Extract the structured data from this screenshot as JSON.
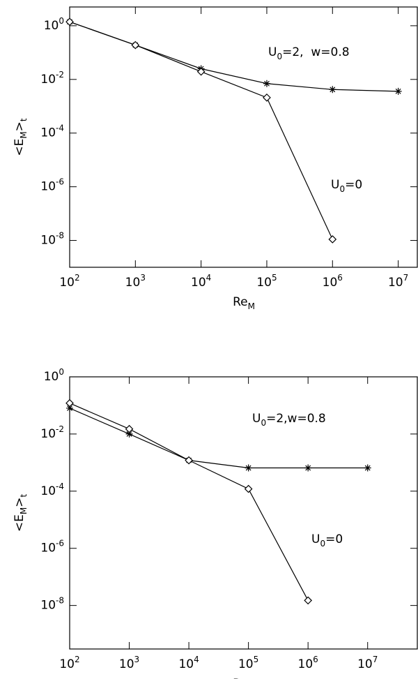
{
  "chart_data": [
    {
      "type": "line",
      "xscale": "log",
      "yscale": "log",
      "xlabel": [
        "Re",
        "M"
      ],
      "ylabel": [
        "<E",
        "M",
        ">",
        "t"
      ],
      "xlim": [
        100,
        20000000
      ],
      "ylim": [
        1e-09,
        5
      ],
      "xticks": [
        {
          "value": 100,
          "label": [
            "10",
            "2"
          ]
        },
        {
          "value": 1000,
          "label": [
            "10",
            "3"
          ]
        },
        {
          "value": 10000,
          "label": [
            "10",
            "4"
          ]
        },
        {
          "value": 100000,
          "label": [
            "10",
            "5"
          ]
        },
        {
          "value": 1000000,
          "label": [
            "10",
            "6"
          ]
        },
        {
          "value": 10000000,
          "label": [
            "10",
            "7"
          ]
        }
      ],
      "yticks": [
        {
          "value": 1e-08,
          "label": [
            "10",
            "-8"
          ]
        },
        {
          "value": 1e-06,
          "label": [
            "10",
            "-6"
          ]
        },
        {
          "value": 0.0001,
          "label": [
            "10",
            "-4"
          ]
        },
        {
          "value": 0.01,
          "label": [
            "10",
            "-2"
          ]
        },
        {
          "value": 1,
          "label": [
            "10",
            "0"
          ]
        }
      ],
      "annotations": [
        [
          "U",
          "0",
          "=2,  w=0.8"
        ],
        [
          "U",
          "0",
          "=0"
        ]
      ],
      "series": [
        {
          "marker": "asterisk",
          "color": "#000000",
          "x": [
            100,
            1000,
            10000,
            100000,
            1000000,
            10000000
          ],
          "values": [
            1.4,
            0.19,
            0.025,
            0.007,
            0.0042,
            0.0036
          ]
        },
        {
          "marker": "diamond",
          "color": "#000000",
          "x": [
            100,
            1000,
            10000,
            100000,
            1000000
          ],
          "values": [
            1.4,
            0.19,
            0.0195,
            0.0021,
            1.1e-08
          ]
        }
      ]
    },
    {
      "type": "line",
      "xscale": "log",
      "yscale": "log",
      "xlabel": [
        "Re",
        "M"
      ],
      "ylabel": [
        "<E",
        "M",
        ">",
        "t"
      ],
      "xlim": [
        100,
        70000000
      ],
      "ylim": [
        3e-10,
        1
      ],
      "xticks": [
        {
          "value": 100,
          "label": [
            "10",
            "2"
          ]
        },
        {
          "value": 1000,
          "label": [
            "10",
            "3"
          ]
        },
        {
          "value": 10000,
          "label": [
            "10",
            "4"
          ]
        },
        {
          "value": 100000,
          "label": [
            "10",
            "5"
          ]
        },
        {
          "value": 1000000,
          "label": [
            "10",
            "6"
          ]
        },
        {
          "value": 10000000,
          "label": [
            "10",
            "7"
          ]
        }
      ],
      "yticks": [
        {
          "value": 1e-08,
          "label": [
            "10",
            "-8"
          ]
        },
        {
          "value": 1e-06,
          "label": [
            "10",
            "-6"
          ]
        },
        {
          "value": 0.0001,
          "label": [
            "10",
            "-4"
          ]
        },
        {
          "value": 0.01,
          "label": [
            "10",
            "-2"
          ]
        },
        {
          "value": 1,
          "label": [
            "10",
            "0"
          ]
        }
      ],
      "annotations": [
        [
          "U",
          "0",
          "=2,w=0.8"
        ],
        [
          "U",
          "0",
          "=0"
        ]
      ],
      "series": [
        {
          "marker": "asterisk",
          "color": "#000000",
          "x": [
            100,
            1000,
            10000,
            100000,
            1000000,
            10000000
          ],
          "values": [
            0.08,
            0.01,
            0.0012,
            0.00065,
            0.00065,
            0.00065
          ]
        },
        {
          "marker": "diamond",
          "color": "#000000",
          "x": [
            100,
            1000,
            10000,
            100000,
            1000000
          ],
          "values": [
            0.12,
            0.015,
            0.0012,
            0.00012,
            1.5e-08
          ]
        }
      ]
    }
  ]
}
